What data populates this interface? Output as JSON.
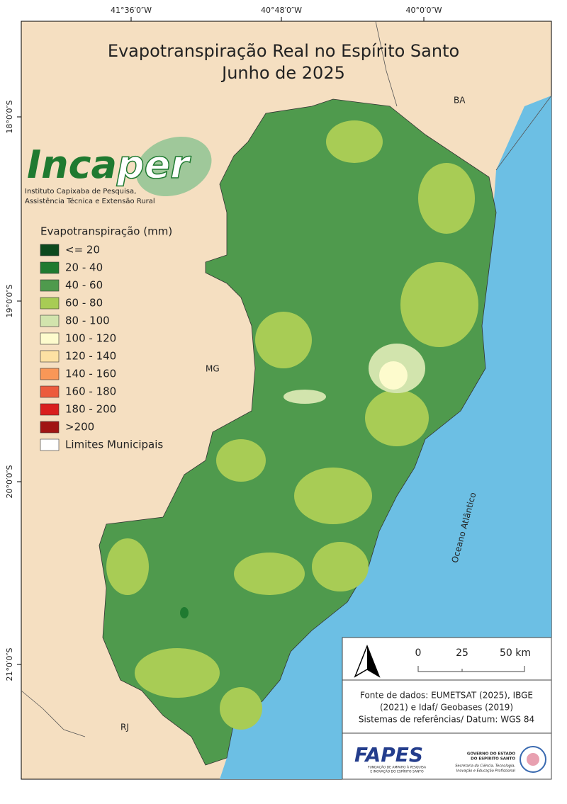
{
  "title": [
    "Evapotranspiração Real no Espírito Santo",
    "Junho de 2025"
  ],
  "graticule": {
    "longitudes": [
      "41°36′0″W",
      "40°48′0″W",
      "40°0′0″W"
    ],
    "latitudes": [
      "18°0′0″S",
      "19°0′0″S",
      "20°0′0″S",
      "21°0′0″S"
    ]
  },
  "logo": {
    "name_part1": "Inca",
    "name_part2": "per",
    "subtitle": [
      "Instituto Capixaba de Pesquisa,",
      "Assistência Técnica e Extensão Rural"
    ]
  },
  "legend": {
    "title": "Evapotranspiração (mm)",
    "items": [
      {
        "label": "<= 20",
        "color": "#0d4a1e"
      },
      {
        "label": "20 - 40",
        "color": "#1f7a30"
      },
      {
        "label": "40 - 60",
        "color": "#4f9a4d"
      },
      {
        "label": "60 - 80",
        "color": "#a8cc55"
      },
      {
        "label": "80 - 100",
        "color": "#d2e4ad"
      },
      {
        "label": "100 - 120",
        "color": "#fdfbcd"
      },
      {
        "label": "120 - 140",
        "color": "#fde1a3"
      },
      {
        "label": "140 - 160",
        "color": "#f99757"
      },
      {
        "label": "160 - 180",
        "color": "#ec5b3d"
      },
      {
        "label": "180 - 200",
        "color": "#d91e1e"
      },
      {
        "label": ">200",
        "color": "#a01414"
      },
      {
        "label": "Limites Municipais",
        "color": "#ffffff"
      }
    ]
  },
  "places": [
    "BA",
    "MG",
    "RJ",
    "Oceano Atlântico"
  ],
  "scale_bar": {
    "labels": [
      "0",
      "25",
      "50 km"
    ]
  },
  "sources": [
    "Fonte de dados: EUMETSAT (2025), IBGE",
    "(2021) e Idaf/ Geobases (2019)",
    "Sistemas de referências/ Datum: WGS 84"
  ],
  "footer": {
    "fapes": "FAPES",
    "fapes_caption": [
      "FUNDAÇÃO DE AMPARO À PESQUISA",
      "E INOVAÇÃO DO ESPÍRITO SANTO"
    ],
    "government": [
      "GOVERNO DO ESTADO",
      "DO ESPÍRITO SANTO"
    ],
    "secretariat": [
      "Secretaria da Ciência, Tecnologia,",
      "Inovação e Educação Profissional"
    ]
  }
}
